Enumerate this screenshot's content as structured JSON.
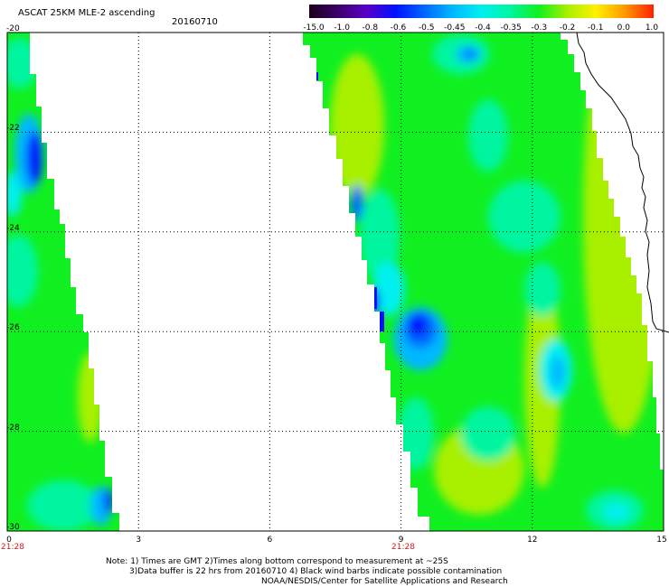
{
  "header": {
    "title": "ASCAT 25KM MLE-2 ascending",
    "date": "20160710"
  },
  "colorbar": {
    "labels": [
      "-15.0",
      "-1.0",
      "-0.8",
      "-0.6",
      "-0.5",
      "-0.45",
      "-0.4",
      "-0.35",
      "-0.3",
      "-0.2",
      "-0.1",
      "0.0",
      "1.0"
    ],
    "colors": [
      "#1a0018",
      "#3c006a",
      "#5a00c8",
      "#0010ff",
      "#0066ff",
      "#00b8ff",
      "#00f0f0",
      "#00f5a0",
      "#10f020",
      "#a8f000",
      "#fff000",
      "#ff9800",
      "#ff2000"
    ]
  },
  "axes": {
    "y_ticks": [
      "-20",
      "-22",
      "-24",
      "-26",
      "-28",
      "-30"
    ],
    "x_ticks": [
      "0",
      "3",
      "6",
      "9",
      "12",
      "15"
    ],
    "x_times": [
      "21:28",
      "21:28"
    ]
  },
  "notes": {
    "line1": "Note: 1) Times are GMT 2)Times along bottom correspond to measurement at ~25S",
    "line2": "3)Data buffer is 22 hrs from 20160710 4) Black wind barbs indicate possible contamination",
    "line3": "NOAA/NESDIS/Center for Satellite Applications and Research"
  }
}
